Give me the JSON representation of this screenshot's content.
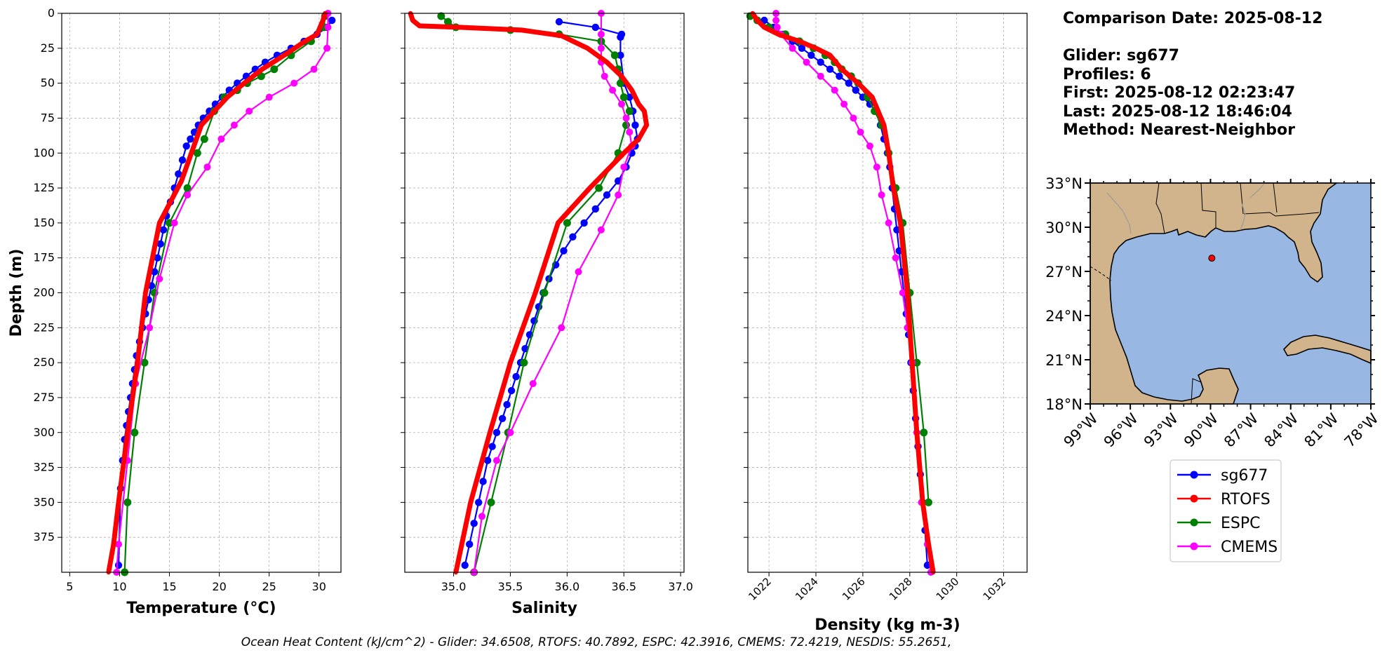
{
  "info": {
    "comparison_date": "Comparison Date: 2025-08-12",
    "glider": "Glider: sg677",
    "profiles": "Profiles: 6",
    "first": "First: 2025-08-12 02:23:47",
    "last": "Last: 2025-08-12 18:46:04",
    "method": "Method: Nearest-Neighbor"
  },
  "ohc_text": "Ocean Heat Content (kJ/cm^2) - Glider: 34.6508,  RTOFS: 40.7892,  ESPC: 42.3916,  CMEMS: 72.4219,  NESDIS: 55.2651,",
  "legend": [
    {
      "name": "sg677",
      "color": "#0000ff"
    },
    {
      "name": "RTOFS",
      "color": "#ff0000"
    },
    {
      "name": "ESPC",
      "color": "#008000"
    },
    {
      "name": "CMEMS",
      "color": "#ff00ff"
    }
  ],
  "chart_data": [
    {
      "type": "line",
      "xlabel": "Temperature (°C)",
      "ylabel": "Depth (m)",
      "xlim": [
        4.2,
        32.2
      ],
      "ylim": [
        400,
        0
      ],
      "xticks": [
        5,
        10,
        15,
        20,
        25,
        30
      ],
      "yticks": [
        0,
        25,
        50,
        75,
        100,
        125,
        150,
        175,
        200,
        225,
        250,
        275,
        300,
        325,
        350,
        375
      ],
      "grid": true,
      "series": [
        {
          "name": "sg677",
          "color": "#0000ff",
          "x": [
            31.3,
            30.8,
            29.8,
            28.5,
            27.2,
            25.8,
            24.6,
            23.6,
            22.7,
            21.8,
            21.0,
            20.3,
            19.6,
            19.0,
            18.4,
            17.9,
            17.5,
            17.1,
            16.7,
            16.3,
            15.9,
            15.5,
            15.1,
            14.7,
            14.4,
            14.1,
            13.8,
            13.5,
            13.2,
            12.9,
            12.6,
            12.3,
            12.0,
            11.7,
            11.5,
            11.3,
            11.1,
            10.9,
            10.7,
            10.5,
            10.3,
            10.1,
            9.9
          ],
          "y": [
            5,
            10,
            15,
            20,
            25,
            30,
            35,
            40,
            45,
            50,
            55,
            60,
            65,
            70,
            75,
            80,
            85,
            90,
            95,
            105,
            115,
            125,
            135,
            145,
            155,
            165,
            175,
            185,
            195,
            205,
            215,
            225,
            235,
            245,
            255,
            265,
            275,
            285,
            295,
            305,
            320,
            340,
            395
          ]
        },
        {
          "name": "RTOFS",
          "color": "#ff0000",
          "x": [
            30.6,
            30.4,
            29.8,
            28.6,
            26.5,
            24.3,
            22.5,
            20.8,
            18.2,
            16.2,
            14.0,
            12.6,
            11.8,
            10.8,
            9.9,
            9.4,
            8.9
          ],
          "y": [
            0,
            5,
            15,
            20,
            30,
            40,
            50,
            60,
            80,
            120,
            150,
            200,
            250,
            300,
            350,
            380,
            400
          ]
        },
        {
          "name": "ESPC",
          "color": "#008000",
          "x": [
            30.6,
            30.5,
            29.2,
            27.2,
            25.5,
            24.2,
            22.8,
            21.8,
            20.5,
            19.5,
            18.5,
            17.8,
            16.8,
            15.0,
            13.5,
            12.5,
            11.5,
            10.8,
            10.5
          ],
          "y": [
            2,
            10,
            20,
            30,
            40,
            45,
            50,
            55,
            60,
            70,
            90,
            100,
            125,
            150,
            200,
            250,
            300,
            350,
            400
          ]
        },
        {
          "name": "CMEMS",
          "color": "#ff00ff",
          "x": [
            30.9,
            30.9,
            30.8,
            29.5,
            27.5,
            25.0,
            23.0,
            21.5,
            20.2,
            18.8,
            16.8,
            15.5,
            14.0,
            13.0,
            11.6,
            10.8,
            9.9,
            9.7
          ],
          "y": [
            0,
            10,
            25,
            40,
            50,
            60,
            70,
            80,
            90,
            110,
            130,
            150,
            190,
            225,
            265,
            320,
            380,
            400
          ]
        }
      ]
    },
    {
      "type": "line",
      "xlabel": "Salinity",
      "ylabel": "",
      "xlim": [
        34.57,
        37.03
      ],
      "ylim": [
        400,
        0
      ],
      "xticks": [
        35.0,
        35.5,
        36.0,
        36.5,
        37.0
      ],
      "yticks": [
        0,
        25,
        50,
        75,
        100,
        125,
        150,
        175,
        200,
        225,
        250,
        275,
        300,
        325,
        350,
        375
      ],
      "grid": true,
      "series": [
        {
          "name": "sg677",
          "color": "#0000ff",
          "x": [
            35.93,
            36.25,
            36.48,
            36.47,
            36.47,
            36.5,
            36.55,
            36.58,
            36.6,
            36.62,
            36.6,
            36.57,
            36.52,
            36.45,
            36.35,
            36.25,
            36.15,
            36.05,
            35.97,
            35.9,
            35.84,
            35.79,
            35.75,
            35.71,
            35.67,
            35.63,
            35.59,
            35.55,
            35.51,
            35.47,
            35.43,
            35.38,
            35.34,
            35.3,
            35.26,
            35.22,
            35.18,
            35.14,
            35.1
          ],
          "y": [
            6,
            10,
            15,
            17,
            30,
            50,
            60,
            70,
            80,
            90,
            95,
            100,
            110,
            120,
            130,
            140,
            150,
            160,
            170,
            180,
            190,
            200,
            210,
            220,
            230,
            240,
            250,
            260,
            270,
            280,
            290,
            300,
            310,
            320,
            335,
            350,
            365,
            380,
            395
          ]
        },
        {
          "name": "RTOFS",
          "color": "#ff0000",
          "x": [
            34.62,
            34.64,
            34.7,
            35.05,
            35.6,
            35.95,
            36.18,
            36.35,
            36.48,
            36.57,
            36.63,
            36.68,
            36.7,
            36.63,
            36.5,
            36.2,
            35.92,
            35.72,
            35.5,
            35.32,
            35.15,
            35.02
          ],
          "y": [
            0,
            5,
            9,
            10,
            12,
            16,
            25,
            35,
            45,
            55,
            65,
            70,
            80,
            90,
            100,
            125,
            150,
            200,
            250,
            300,
            350,
            400
          ]
        },
        {
          "name": "ESPC",
          "color": "#008000",
          "x": [
            34.89,
            34.95,
            35.02,
            35.5,
            35.93,
            36.3,
            36.42,
            36.45,
            36.47,
            36.5,
            36.55,
            36.52,
            36.45,
            36.28,
            36.0,
            35.8,
            35.62,
            35.48,
            35.33,
            35.18
          ],
          "y": [
            2,
            6,
            10,
            12,
            15,
            20,
            30,
            40,
            50,
            60,
            70,
            80,
            100,
            125,
            150,
            200,
            250,
            300,
            350,
            400
          ]
        },
        {
          "name": "CMEMS",
          "color": "#ff00ff",
          "x": [
            36.3,
            36.3,
            36.3,
            36.3,
            36.33,
            36.4,
            36.48,
            36.52,
            36.55,
            36.57,
            36.5,
            36.45,
            36.3,
            36.1,
            35.95,
            35.7,
            35.5,
            35.38,
            35.25,
            35.18
          ],
          "y": [
            0,
            15,
            25,
            35,
            45,
            55,
            65,
            75,
            85,
            95,
            110,
            130,
            155,
            185,
            225,
            265,
            300,
            320,
            360,
            400
          ]
        }
      ]
    },
    {
      "type": "line",
      "xlabel": "Density (kg m-3)",
      "ylabel": "",
      "xlim": [
        1021.1,
        1033.0
      ],
      "ylim": [
        400,
        0
      ],
      "xticks": [
        1022,
        1024,
        1026,
        1028,
        1030,
        1032
      ],
      "yticks": [
        0,
        25,
        50,
        75,
        100,
        125,
        150,
        175,
        200,
        225,
        250,
        275,
        300,
        325,
        350,
        375
      ],
      "grid": true,
      "series": [
        {
          "name": "sg677",
          "color": "#0000ff",
          "x": [
            1021.8,
            1022.2,
            1022.6,
            1023.0,
            1023.4,
            1023.8,
            1024.2,
            1024.6,
            1025.0,
            1025.4,
            1025.7,
            1026.0,
            1026.3,
            1026.55,
            1026.75,
            1026.9,
            1027.05,
            1027.15,
            1027.25,
            1027.35,
            1027.45,
            1027.55,
            1027.65,
            1027.75,
            1027.85,
            1027.95,
            1028.05,
            1028.15,
            1028.25,
            1028.35,
            1028.45,
            1028.55,
            1028.65,
            1028.75
          ],
          "y": [
            5,
            10,
            15,
            20,
            25,
            30,
            35,
            40,
            45,
            50,
            55,
            60,
            65,
            70,
            80,
            90,
            100,
            110,
            125,
            140,
            155,
            170,
            185,
            200,
            215,
            230,
            250,
            270,
            290,
            310,
            330,
            350,
            370,
            395
          ]
        },
        {
          "name": "RTOFS",
          "color": "#ff0000",
          "x": [
            1021.3,
            1021.5,
            1021.8,
            1022.4,
            1023.3,
            1024.0,
            1024.6,
            1025.1,
            1025.8,
            1026.4,
            1026.9,
            1027.1,
            1027.3,
            1027.6,
            1027.9,
            1028.1,
            1028.3,
            1028.55,
            1028.8,
            1029.0
          ],
          "y": [
            0,
            5,
            10,
            15,
            20,
            25,
            30,
            40,
            50,
            60,
            80,
            100,
            125,
            150,
            200,
            250,
            300,
            350,
            380,
            400
          ]
        },
        {
          "name": "ESPC",
          "color": "#008000",
          "x": [
            1021.2,
            1021.5,
            1022.0,
            1022.7,
            1023.3,
            1023.9,
            1024.4,
            1024.8,
            1025.1,
            1025.5,
            1025.8,
            1026.2,
            1026.5,
            1026.8,
            1027.1,
            1027.4,
            1027.7,
            1028.0,
            1028.3,
            1028.6,
            1028.8
          ],
          "y": [
            2,
            5,
            10,
            15,
            20,
            25,
            30,
            35,
            40,
            45,
            50,
            60,
            70,
            80,
            100,
            125,
            150,
            200,
            250,
            300,
            350
          ]
        },
        {
          "name": "CMEMS",
          "color": "#ff00ff",
          "x": [
            1022.3,
            1022.3,
            1022.35,
            1022.5,
            1023.0,
            1023.6,
            1024.2,
            1024.8,
            1025.2,
            1025.6,
            1025.9,
            1026.3,
            1026.6,
            1026.8,
            1027.1,
            1027.4,
            1027.7,
            1027.9,
            1028.1,
            1028.3,
            1028.5,
            1028.75,
            1028.9
          ],
          "y": [
            0,
            5,
            10,
            15,
            25,
            35,
            45,
            55,
            65,
            75,
            85,
            95,
            110,
            130,
            150,
            175,
            200,
            225,
            250,
            300,
            350,
            380,
            400
          ]
        }
      ]
    },
    {
      "type": "map",
      "xlim": [
        -99,
        -78
      ],
      "ylim": [
        18,
        33
      ],
      "xticks": [
        "99°W",
        "96°W",
        "93°W",
        "90°W",
        "87°W",
        "84°W",
        "81°W",
        "78°W"
      ],
      "yticks": [
        "18°N",
        "21°N",
        "24°N",
        "27°N",
        "30°N",
        "33°N"
      ],
      "marker": {
        "lon": -89.9,
        "lat": 27.9,
        "color": "#ff0000"
      },
      "land_color": "#d2b48c",
      "ocean_color": "#98b7e2"
    }
  ]
}
